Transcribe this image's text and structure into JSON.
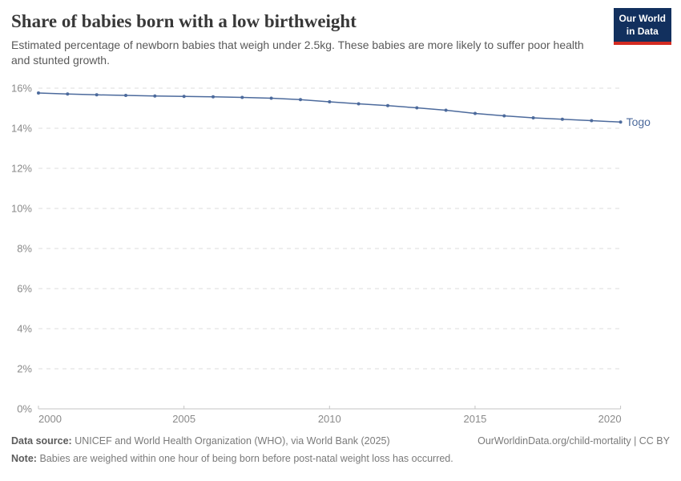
{
  "header": {
    "title": "Share of babies born with a low birthweight",
    "subtitle": "Estimated percentage of newborn babies that weigh under 2.5kg. These babies are more likely to suffer poor health and stunted growth.",
    "logo": {
      "line1": "Our World",
      "line2": "in Data"
    }
  },
  "chart_data": {
    "type": "line",
    "title": "Share of babies born with a low birthweight",
    "x": [
      2000,
      2001,
      2002,
      2003,
      2004,
      2005,
      2006,
      2007,
      2008,
      2009,
      2010,
      2011,
      2012,
      2013,
      2014,
      2015,
      2016,
      2017,
      2018,
      2019,
      2020
    ],
    "series": [
      {
        "name": "Togo",
        "values": [
          15.76,
          15.71,
          15.67,
          15.64,
          15.61,
          15.59,
          15.57,
          15.54,
          15.5,
          15.43,
          15.32,
          15.22,
          15.13,
          15.02,
          14.9,
          14.74,
          14.62,
          14.52,
          14.45,
          14.38,
          14.31
        ],
        "color": "#4c6a9c"
      }
    ],
    "end_label": "Togo",
    "xlabel": "",
    "ylabel": "",
    "xlim": [
      2000,
      2020
    ],
    "ylim": [
      0,
      16
    ],
    "xticks": [
      2000,
      2005,
      2010,
      2015,
      2020
    ],
    "yticks": [
      0,
      2,
      4,
      6,
      8,
      10,
      12,
      14,
      16
    ],
    "ytick_suffix": "%",
    "grid": "horizontal-dashed",
    "legend_position": "end-of-line"
  },
  "footer": {
    "source_label": "Data source:",
    "source_text": "UNICEF and World Health Organization (WHO), via World Bank (2025)",
    "note_label": "Note:",
    "note_text": "Babies are weighed within one hour of being born before post-natal weight loss has occurred.",
    "attribution": "OurWorldinData.org/child-mortality | CC BY"
  },
  "colors": {
    "series_line": "#4c6a9c",
    "end_label": "#4c6a9c",
    "grid_line": "#dedede",
    "axis_line": "#c4c4c4",
    "tick_label": "#8a8a8a",
    "logo_bg": "#12305e",
    "logo_stripe": "#d42b21",
    "title_text": "#383838",
    "subtitle_text": "#595959"
  }
}
